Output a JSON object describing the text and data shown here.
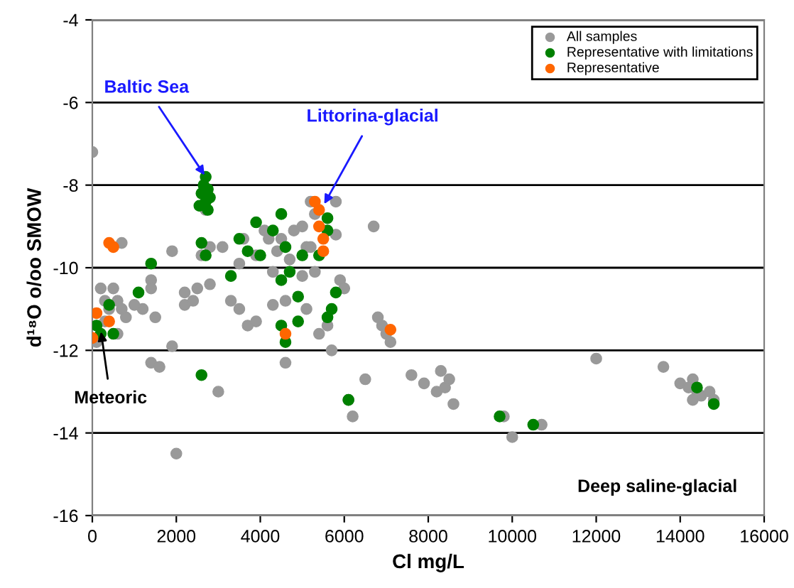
{
  "chart_data": {
    "type": "scatter",
    "xlabel": "Cl mg/L",
    "ylabel": "d¹⁸O o/oo SMOW",
    "xlim": [
      0,
      16000
    ],
    "ylim": [
      -16,
      -4
    ],
    "xticks": [
      0,
      2000,
      4000,
      6000,
      8000,
      10000,
      12000,
      14000,
      16000
    ],
    "yticks": [
      -16,
      -14,
      -12,
      -10,
      -8,
      -6,
      -4
    ],
    "grid": "y",
    "legend": "top right",
    "marker": "circle",
    "series": [
      {
        "name": "All samples",
        "color": "#999999",
        "x": [
          0,
          100,
          200,
          300,
          400,
          500,
          600,
          700,
          800,
          300,
          600,
          700,
          1400,
          1400,
          1500,
          1200,
          1000,
          1900,
          1400,
          1600,
          2000,
          1900,
          2200,
          2200,
          2400,
          2500,
          2600,
          2700,
          2800,
          2800,
          3000,
          3100,
          3300,
          3500,
          3500,
          3600,
          3700,
          3900,
          3900,
          4100,
          4200,
          4300,
          4400,
          4300,
          4500,
          4600,
          4600,
          4700,
          4800,
          5000,
          5000,
          5100,
          5100,
          5200,
          5200,
          5300,
          5300,
          5400,
          5600,
          5700,
          5800,
          5900,
          6000,
          6100,
          6200,
          6500,
          6700,
          6800,
          6900,
          7000,
          7100,
          7600,
          7900,
          8300,
          8200,
          8400,
          8500,
          8600,
          9800,
          10000,
          10700,
          12000,
          13600,
          14000,
          14200,
          14300,
          14400,
          14500,
          14700,
          14300,
          14800,
          5800
        ],
        "values": [
          -7.2,
          -11.8,
          -10.5,
          -10.8,
          -11.0,
          -10.5,
          -10.8,
          -11.0,
          -11.2,
          -11.3,
          -11.6,
          -9.4,
          -10.3,
          -10.5,
          -11.2,
          -11.0,
          -10.9,
          -11.9,
          -12.3,
          -12.4,
          -14.5,
          -9.6,
          -10.6,
          -10.9,
          -10.8,
          -10.5,
          -9.7,
          -8.6,
          -9.5,
          -10.4,
          -13.0,
          -9.5,
          -10.8,
          -9.9,
          -11.0,
          -9.3,
          -11.4,
          -9.7,
          -11.3,
          -9.1,
          -9.3,
          -10.1,
          -9.6,
          -10.9,
          -9.3,
          -10.8,
          -12.3,
          -9.8,
          -9.1,
          -9.0,
          -10.2,
          -9.5,
          -11.0,
          -8.4,
          -9.5,
          -8.7,
          -10.1,
          -11.6,
          -11.4,
          -12.0,
          -9.2,
          -10.3,
          -10.5,
          -13.2,
          -13.6,
          -12.7,
          -9.0,
          -11.2,
          -11.4,
          -11.6,
          -11.8,
          -12.6,
          -12.8,
          -12.5,
          -13.0,
          -12.9,
          -12.7,
          -13.3,
          -13.6,
          -14.1,
          -13.8,
          -12.2,
          -12.4,
          -12.8,
          -12.9,
          -12.7,
          -13.0,
          -13.1,
          -13.0,
          -13.2,
          -13.2,
          -8.4
        ]
      },
      {
        "name": "Representative with limitations",
        "color": "#008000",
        "x": [
          2700,
          2650,
          2750,
          2600,
          2800,
          2700,
          2550,
          2750,
          1100,
          1400,
          100,
          200,
          400,
          500,
          2600,
          2600,
          2700,
          3300,
          3500,
          3700,
          3900,
          4000,
          4300,
          4600,
          4500,
          4700,
          4600,
          4500,
          4900,
          4900,
          5000,
          5600,
          5600,
          5400,
          5800,
          5600,
          5700,
          6100,
          9700,
          10500,
          14400,
          14800,
          4500
        ],
        "values": [
          -7.8,
          -8.0,
          -8.1,
          -8.2,
          -8.3,
          -8.4,
          -8.5,
          -8.6,
          -10.6,
          -9.9,
          -11.4,
          -11.6,
          -10.9,
          -11.6,
          -12.6,
          -9.4,
          -9.7,
          -10.2,
          -9.3,
          -9.6,
          -8.9,
          -9.7,
          -9.1,
          -9.5,
          -10.3,
          -10.1,
          -11.8,
          -11.4,
          -11.3,
          -10.7,
          -9.7,
          -8.8,
          -9.1,
          -9.7,
          -10.6,
          -11.2,
          -11.0,
          -13.2,
          -13.6,
          -13.8,
          -12.9,
          -13.3,
          -8.7
        ]
      },
      {
        "name": "Representative",
        "color": "#ff6600",
        "x": [
          400,
          500,
          100,
          400,
          0,
          5400,
          5400,
          5500,
          5500,
          4600,
          7100,
          5300
        ],
        "values": [
          -9.4,
          -9.5,
          -11.1,
          -11.3,
          -11.7,
          -8.6,
          -9.0,
          -9.3,
          -9.6,
          -11.6,
          -11.5,
          -8.4
        ]
      }
    ],
    "annotations": [
      {
        "text": "Baltic Sea",
        "x": 2700,
        "y": -7.8
      },
      {
        "text": "Littorina-glacial",
        "x": 5500,
        "y": -8.5
      },
      {
        "text": "Meteoric",
        "x": 200,
        "y": -11.5
      },
      "Deep saline-glacial"
    ]
  }
}
